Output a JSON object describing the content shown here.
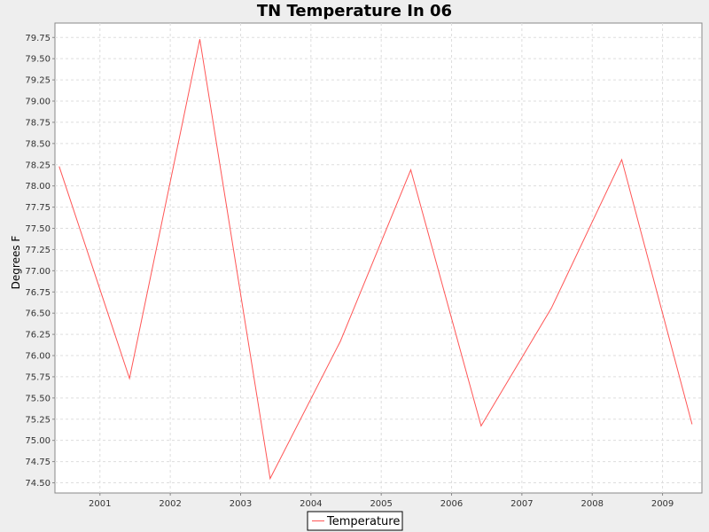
{
  "chart_data": {
    "type": "line",
    "title": "TN Temperature In 06",
    "xlabel": "",
    "ylabel": "Degrees F",
    "x_ticks": [
      "2001",
      "2002",
      "2003",
      "2004",
      "2005",
      "2006",
      "2007",
      "2008",
      "2009"
    ],
    "x_tick_values": [
      2001,
      2002,
      2003,
      2004,
      2005,
      2006,
      2007,
      2008,
      2009
    ],
    "y_ticks": [
      "74.50",
      "74.75",
      "75.00",
      "75.25",
      "75.50",
      "75.75",
      "76.00",
      "76.25",
      "76.50",
      "76.75",
      "77.00",
      "77.25",
      "77.50",
      "77.75",
      "78.00",
      "78.25",
      "78.50",
      "78.75",
      "79.00",
      "79.25",
      "79.50",
      "79.75"
    ],
    "y_tick_values": [
      74.5,
      74.75,
      75.0,
      75.25,
      75.5,
      75.75,
      76.0,
      76.25,
      76.5,
      76.75,
      77.0,
      77.25,
      77.5,
      77.75,
      78.0,
      78.25,
      78.5,
      78.75,
      79.0,
      79.25,
      79.5,
      79.75
    ],
    "xlim": [
      2000.36,
      2009.56
    ],
    "ylim": [
      74.38,
      79.92
    ],
    "grid": true,
    "legend_position": "bottom-center",
    "series": [
      {
        "name": "Temperature",
        "color": "#ff5555",
        "x": [
          "2000-06",
          "2001-06",
          "2002-06",
          "2003-06",
          "2004-06",
          "2005-06",
          "2006-06",
          "2007-06",
          "2008-06",
          "2009-06"
        ],
        "x_numeric": [
          2000.42,
          2001.42,
          2002.42,
          2003.42,
          2004.42,
          2005.42,
          2006.42,
          2007.42,
          2008.42,
          2009.42
        ],
        "values": [
          78.23,
          75.73,
          79.73,
          74.55,
          76.17,
          78.19,
          75.17,
          76.56,
          78.31,
          75.19
        ]
      }
    ]
  }
}
